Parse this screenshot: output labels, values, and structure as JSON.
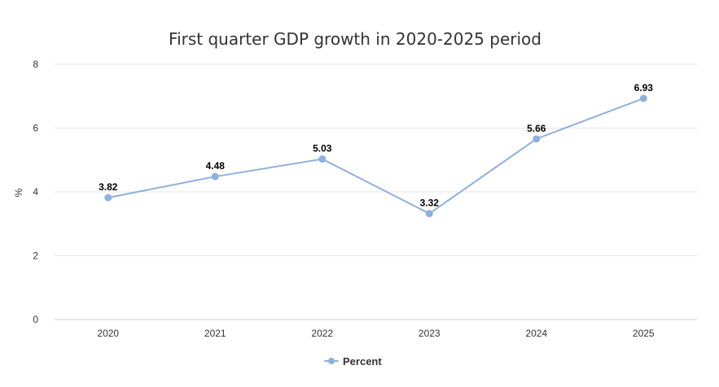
{
  "chart_data": {
    "type": "line",
    "title": "First quarter GDP growth in 2020-2025 period",
    "xlabel": "",
    "ylabel": "%",
    "categories": [
      "2020",
      "2021",
      "2022",
      "2023",
      "2024",
      "2025"
    ],
    "series": [
      {
        "name": "Percent",
        "values": [
          3.82,
          4.48,
          5.03,
          3.32,
          5.66,
          6.93
        ],
        "labels": [
          "3.82",
          "4.48",
          "5.03",
          "3.32",
          "5.66",
          "6.93"
        ],
        "color": "#8eb0de"
      }
    ],
    "ylim": [
      0,
      8
    ],
    "yticks": [
      "0",
      "2",
      "4",
      "6",
      "8"
    ],
    "grid": true,
    "legend_position": "bottom-center"
  }
}
